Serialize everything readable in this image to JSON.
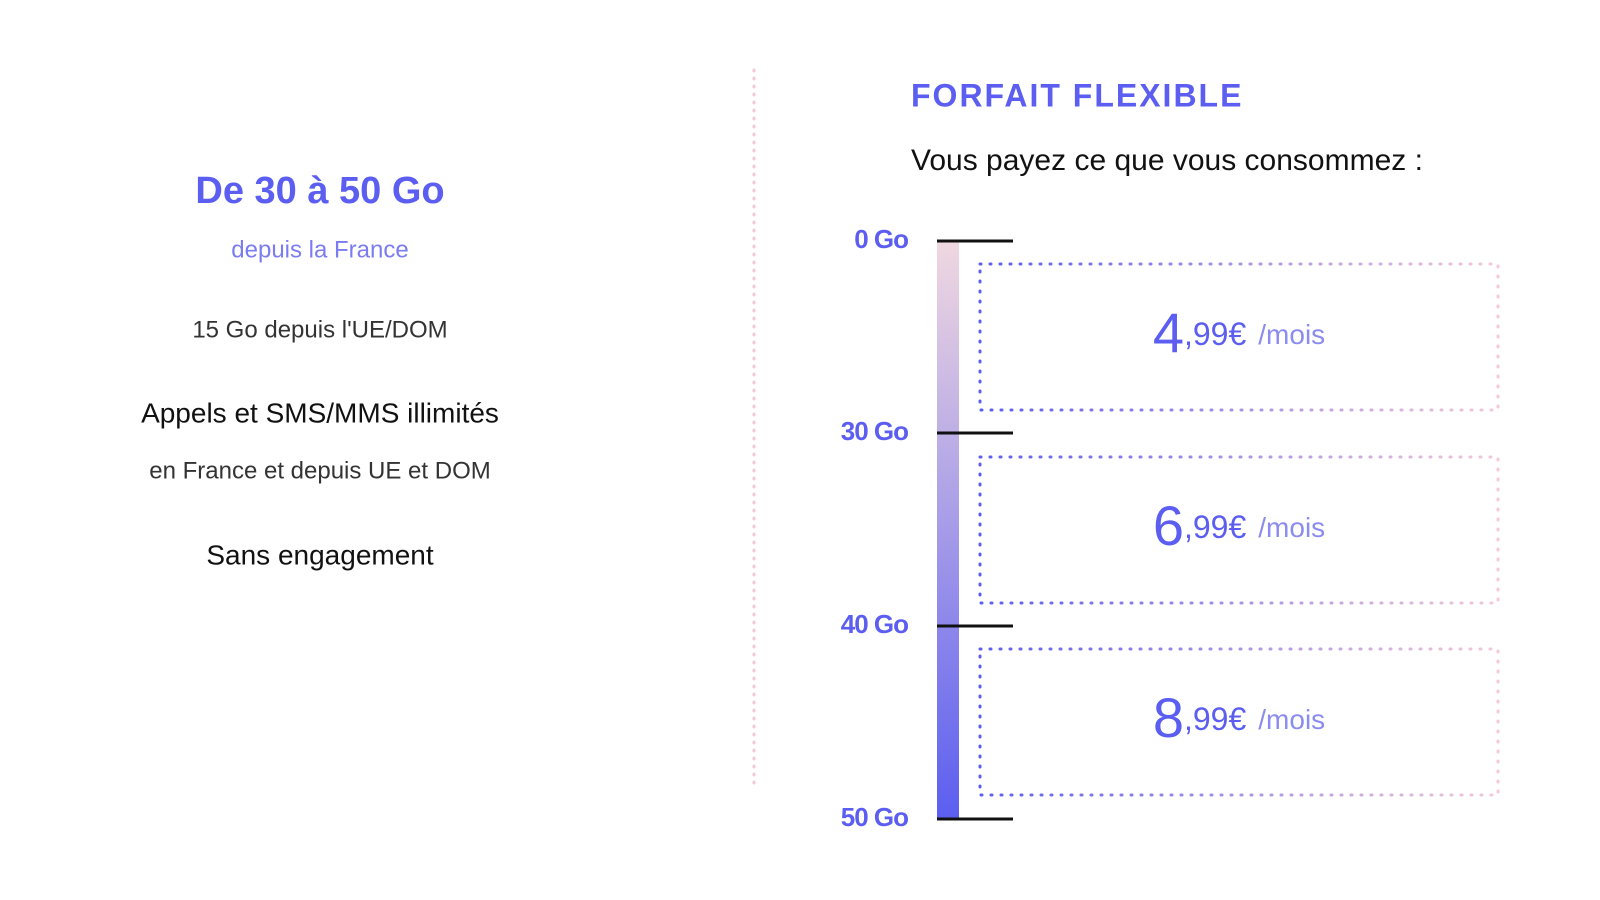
{
  "left": {
    "title": "De 30 à 50 Go",
    "subtitle": "depuis la France",
    "line1": "15 Go depuis l'UE/DOM",
    "line2": "Appels et SMS/MMS illimités",
    "line3": "en France et depuis UE et DOM",
    "line4": "Sans engagement"
  },
  "right": {
    "heading": "FORFAIT FLEXIBLE",
    "subheading": "Vous payez ce que vous consommez :",
    "scale": [
      "0 Go",
      "30 Go",
      "40 Go",
      "50 Go"
    ],
    "prices": [
      {
        "main": "4",
        "cents": ",99€",
        "unit": "/mois"
      },
      {
        "main": "6",
        "cents": ",99€",
        "unit": "/mois"
      },
      {
        "main": "8",
        "cents": ",99€",
        "unit": "/mois"
      }
    ]
  }
}
